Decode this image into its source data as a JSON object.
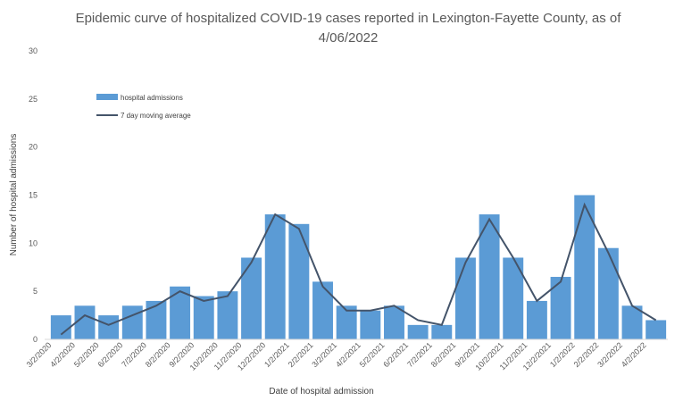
{
  "chart_data": {
    "type": "bar",
    "title_line1": "Epidemic curve of hospitalized COVID-19 cases reported in Lexington-Fayette County, as of",
    "title_line2": "4/06/2022",
    "xlabel": "Date of hospital admission",
    "ylabel": "Number of hospital admissions",
    "ylim": [
      0,
      30
    ],
    "yticks": [
      "0",
      "5",
      "10",
      "15",
      "20",
      "25",
      "30"
    ],
    "grid": false,
    "legend_position": "top-left",
    "x_tick_labels": [
      "3/2/2020",
      "4/2/2020",
      "5/2/2020",
      "6/2/2020",
      "7/2/2020",
      "8/2/2020",
      "9/2/2020",
      "10/2/2020",
      "11/2/2020",
      "12/2/2020",
      "1/2/2021",
      "2/2/2021",
      "3/2/2021",
      "4/2/2021",
      "5/2/2021",
      "6/2/2021",
      "7/2/2021",
      "8/2/2021",
      "9/2/2021",
      "10/2/2021",
      "11/2/2021",
      "12/2/2021",
      "1/2/2022",
      "2/2/2022",
      "3/2/2022",
      "4/2/2022"
    ],
    "colors": {
      "bars": "#5b9bd5",
      "line": "#44546a"
    },
    "series": [
      {
        "name": "hospital admissions",
        "kind": "bar",
        "period": "month",
        "x": [
          "3/2020",
          "4/2020",
          "5/2020",
          "6/2020",
          "7/2020",
          "8/2020",
          "9/2020",
          "10/2020",
          "11/2020",
          "12/2020",
          "1/2021",
          "2/2021",
          "3/2021",
          "4/2021",
          "5/2021",
          "6/2021",
          "7/2021",
          "8/2021",
          "9/2021",
          "10/2021",
          "11/2021",
          "12/2021",
          "1/2022",
          "2/2022",
          "3/2022",
          "4/2022"
        ],
        "values": [
          2.5,
          3.5,
          2.5,
          3.5,
          4.0,
          5.5,
          4.5,
          5.0,
          8.5,
          13.0,
          12.0,
          6.0,
          3.5,
          3.0,
          3.5,
          1.5,
          1.5,
          8.5,
          13.0,
          8.5,
          4.0,
          6.5,
          15.0,
          9.5,
          3.5,
          2.0
        ]
      },
      {
        "name": "7 day moving average",
        "kind": "line",
        "period": "month",
        "x": [
          "3/2020",
          "4/2020",
          "5/2020",
          "6/2020",
          "7/2020",
          "8/2020",
          "9/2020",
          "10/2020",
          "11/2020",
          "12/2020",
          "1/2021",
          "2/2021",
          "3/2021",
          "4/2021",
          "5/2021",
          "6/2021",
          "7/2021",
          "8/2021",
          "9/2021",
          "10/2021",
          "11/2021",
          "12/2021",
          "1/2022",
          "2/2022",
          "3/2022",
          "4/2022"
        ],
        "values": [
          0.5,
          2.5,
          1.5,
          2.5,
          3.5,
          5.0,
          4.0,
          4.5,
          8.0,
          13.0,
          11.5,
          5.5,
          3.0,
          3.0,
          3.5,
          2.0,
          1.5,
          8.0,
          12.5,
          8.5,
          4.0,
          6.0,
          14.0,
          9.0,
          3.5,
          2.0
        ]
      }
    ]
  }
}
